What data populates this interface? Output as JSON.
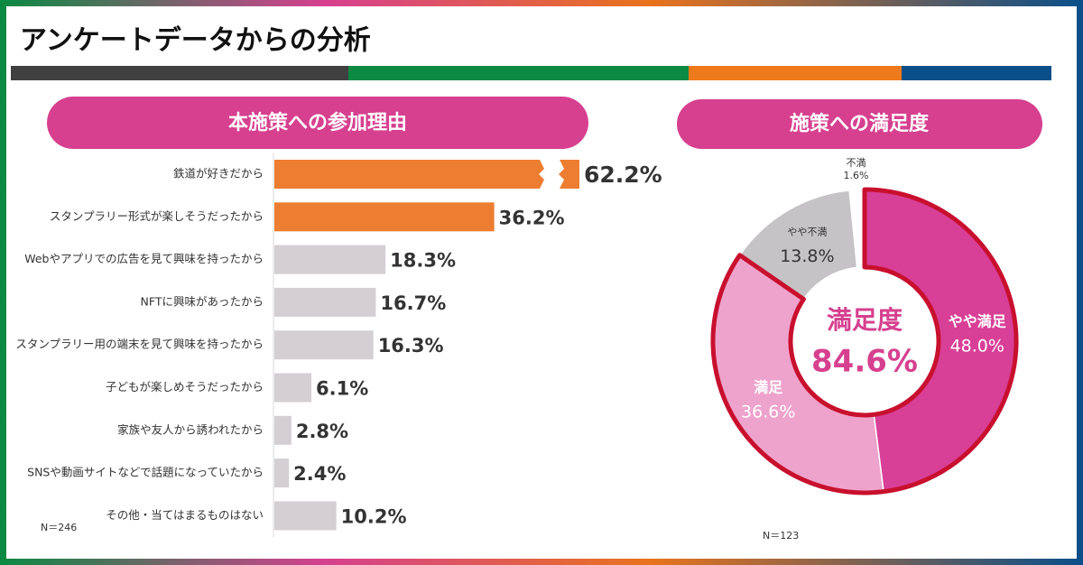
{
  "title": "アンケートデータからの分析",
  "chart_data": [
    {
      "type": "bar",
      "title": "本施策への参加理由",
      "categories": [
        "鉄道が好きだから",
        "スタンプラリー形式が楽しそうだったから",
        "Webやアプリでの広告を見て興味を持ったから",
        "NFTに興味があったから",
        "スタンプラリー用の端末を見て興味を持ったから",
        "子どもが楽しめそうだったから",
        "家族や友人から誘われたから",
        "SNSや動画サイトなどで話題になっていたから",
        "その他・当てはまるものはない"
      ],
      "values": [
        62.2,
        36.2,
        18.3,
        16.7,
        16.3,
        6.1,
        2.8,
        2.4,
        10.2
      ],
      "value_labels": [
        "62.2%",
        "36.2%",
        "18.3%",
        "16.7%",
        "16.3%",
        "6.1%",
        "2.8%",
        "2.4%",
        "10.2%"
      ],
      "colors": [
        "#ed7d31",
        "#ed7d31",
        "#d3cfd3",
        "#d3cfd3",
        "#d3cfd3",
        "#d3cfd3",
        "#d3cfd3",
        "#d3cfd3",
        "#d3cfd3"
      ],
      "sample_size": "N＝246"
    },
    {
      "type": "pie",
      "title": "施策への満足度",
      "categories": [
        "やや満足",
        "満足",
        "やや不満",
        "不満"
      ],
      "values": [
        48.0,
        36.6,
        13.8,
        1.6
      ],
      "value_labels": [
        "48.0%",
        "36.6%",
        "13.8%",
        "1.6%"
      ],
      "colors": [
        "#d83f97",
        "#eea3cc",
        "#c5c3c5",
        "#ffffff"
      ],
      "label_colors": [
        "#ffffff",
        "#ffffff",
        "#333333",
        "#333333"
      ],
      "center_label": "満足度",
      "center_value": 84.6,
      "center_value_label": "84.6%",
      "sample_size": "N＝123"
    }
  ]
}
